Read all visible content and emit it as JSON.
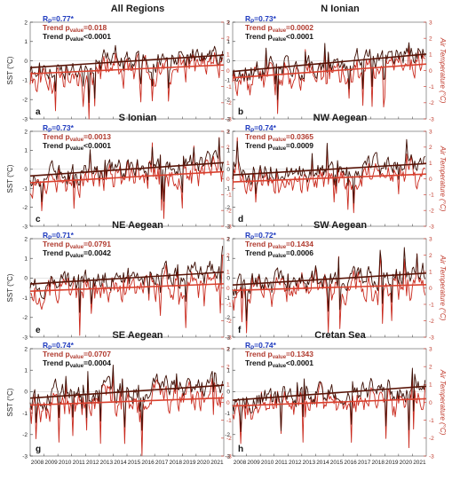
{
  "colors": {
    "sst": "#3d0f05",
    "air": "#c92a1e",
    "trend_sst": "#5a1508",
    "trend_air": "#d9412e",
    "rp_text": "#1f3bbf",
    "air_pvalue_text": "#b03a2e",
    "sst_pvalue_text": "#111111"
  },
  "chart_data": [
    {
      "type": "line",
      "panel_label": "a",
      "title": "All Regions",
      "rp": "R",
      "rp_sub": "P",
      "rp_value": "=0.77*",
      "trend_air_label": "Trend p",
      "trend_air_sub": "value",
      "trend_air_value": "=0.018",
      "trend_sst_label": "Trend p",
      "trend_sst_sub": "value",
      "trend_sst_value": "<0.0001",
      "ylabel_left": "SST (°C)",
      "ylabel_right": "",
      "ylim_left": [
        -3,
        2
      ],
      "ylim_right": [
        -3,
        3
      ],
      "xlim": [
        2008,
        2022
      ],
      "trend_sst": [
        -0.35,
        0.3
      ],
      "trend_air": [
        -0.2,
        0.35
      ],
      "seed": 11
    },
    {
      "type": "line",
      "panel_label": "b",
      "title": "N Ionian",
      "rp": "R",
      "rp_sub": "P",
      "rp_value": "=0.73*",
      "trend_air_label": "Trend p",
      "trend_air_sub": "value",
      "trend_air_value": "=0.0002",
      "trend_sst_label": "Trend p",
      "trend_sst_sub": "value",
      "trend_sst_value": "<0.0001",
      "ylabel_left": "",
      "ylabel_right": "Air Temperature (°C)",
      "ylim_left": [
        -3,
        2
      ],
      "ylim_right": [
        -3,
        3
      ],
      "xlim": [
        2008,
        2022
      ],
      "trend_sst": [
        -0.55,
        0.35
      ],
      "trend_air": [
        -0.45,
        0.4
      ],
      "seed": 23
    },
    {
      "type": "line",
      "panel_label": "c",
      "title": "S Ionian",
      "rp": "R",
      "rp_sub": "P",
      "rp_value": "=0.73*",
      "trend_air_label": "Trend p",
      "trend_air_sub": "value",
      "trend_air_value": "=0.0013",
      "trend_sst_label": "Trend p",
      "trend_sst_sub": "value",
      "trend_sst_value": "<0.0001",
      "ylabel_left": "SST (°C)",
      "ylabel_right": "",
      "ylim_left": [
        -3,
        2
      ],
      "ylim_right": [
        -3,
        3
      ],
      "xlim": [
        2008,
        2022
      ],
      "trend_sst": [
        -0.35,
        0.35
      ],
      "trend_air": [
        -0.25,
        0.45
      ],
      "seed": 37
    },
    {
      "type": "line",
      "panel_label": "d",
      "title": "NW Aegean",
      "rp": "R",
      "rp_sub": "P",
      "rp_value": "=0.74*",
      "trend_air_label": "Trend p",
      "trend_air_sub": "value",
      "trend_air_value": "=0.0365",
      "trend_sst_label": "Trend p",
      "trend_sst_sub": "value",
      "trend_sst_value": "=0.0009",
      "ylabel_left": "",
      "ylabel_right": "Air Temperature (°C)",
      "ylim_left": [
        -3,
        2
      ],
      "ylim_right": [
        -3,
        3
      ],
      "xlim": [
        2008,
        2022
      ],
      "trend_sst": [
        -0.3,
        0.3
      ],
      "trend_air": [
        -0.2,
        0.3
      ],
      "seed": 41
    },
    {
      "type": "line",
      "panel_label": "e",
      "title": "NE Aegean",
      "rp": "R",
      "rp_sub": "P",
      "rp_value": "=0.71*",
      "trend_air_label": "Trend p",
      "trend_air_sub": "value",
      "trend_air_value": "=0.0791",
      "trend_sst_label": "Trend p",
      "trend_sst_sub": "value",
      "trend_sst_value": "=0.0042",
      "ylabel_left": "SST (°C)",
      "ylabel_right": "",
      "ylim_left": [
        -3,
        2
      ],
      "ylim_right": [
        -3,
        3
      ],
      "xlim": [
        2008,
        2022
      ],
      "trend_sst": [
        -0.3,
        0.3
      ],
      "trend_air": [
        -0.2,
        0.25
      ],
      "seed": 53
    },
    {
      "type": "line",
      "panel_label": "f",
      "title": "SW Aegean",
      "rp": "R",
      "rp_sub": "P",
      "rp_value": "=0.72*",
      "trend_air_label": "Trend p",
      "trend_air_sub": "value",
      "trend_air_value": "=0.1434",
      "trend_sst_label": "Trend p",
      "trend_sst_sub": "value",
      "trend_sst_value": "=0.0006",
      "ylabel_left": "",
      "ylabel_right": "Air Temperature (°C)",
      "ylim_left": [
        -3,
        2
      ],
      "ylim_right": [
        -3,
        3
      ],
      "xlim": [
        2008,
        2022
      ],
      "trend_sst": [
        -0.35,
        0.25
      ],
      "trend_air": [
        -0.15,
        0.2
      ],
      "seed": 67
    },
    {
      "type": "line",
      "panel_label": "g",
      "title": "SE Aegean",
      "rp": "R",
      "rp_sub": "P",
      "rp_value": "=0.74*",
      "trend_air_label": "Trend p",
      "trend_air_sub": "value",
      "trend_air_value": "=0.0707",
      "trend_sst_label": "Trend p",
      "trend_sst_sub": "value",
      "trend_sst_value": "=0.0004",
      "ylabel_left": "SST (°C)",
      "ylabel_right": "",
      "ylim_left": [
        -3,
        2
      ],
      "ylim_right": [
        -3,
        3
      ],
      "xlim": [
        2008,
        2022
      ],
      "trend_sst": [
        -0.3,
        0.3
      ],
      "trend_air": [
        -0.15,
        0.25
      ],
      "seed": 79
    },
    {
      "type": "line",
      "panel_label": "h",
      "title": "Cretan Sea",
      "rp": "R",
      "rp_sub": "P",
      "rp_value": "=0.74*",
      "trend_air_label": "Trend p",
      "trend_air_sub": "value",
      "trend_air_value": "=0.1343",
      "trend_sst_label": "Trend p",
      "trend_sst_sub": "value",
      "trend_sst_value": "<0.0001",
      "ylabel_left": "",
      "ylabel_right": "Air Temperature (°C)",
      "ylim_left": [
        -3,
        2
      ],
      "ylim_right": [
        -3,
        3
      ],
      "xlim": [
        2008,
        2022
      ],
      "trend_sst": [
        -0.4,
        0.25
      ],
      "trend_air": [
        -0.2,
        0.2
      ],
      "seed": 97
    }
  ],
  "axes": {
    "left_ticks": [
      "2",
      "1",
      "0",
      "-1",
      "-2",
      "-3"
    ],
    "right_ticks": [
      "3",
      "2",
      "1",
      "0",
      "-1",
      "-2",
      "-3"
    ],
    "x_ticks": [
      "2008",
      "2009",
      "2010",
      "2011",
      "2012",
      "2013",
      "2014",
      "2015",
      "2016",
      "2017",
      "2018",
      "2019",
      "2020",
      "2021"
    ]
  }
}
